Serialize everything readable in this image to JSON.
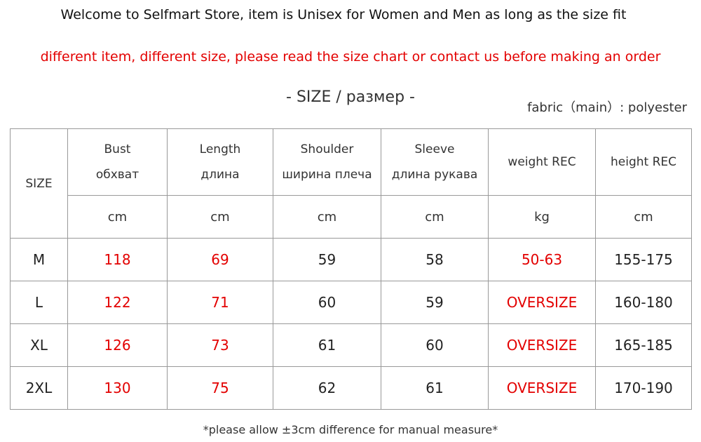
{
  "header": {
    "welcome": "Welcome to Selfmart Store, item is Unisex for Women and Men as long as the size fit",
    "notice": "different item, different size,  please read the size chart or contact us before making an order",
    "size_title": "- SIZE / размер -",
    "fabric": "fabric（main）: polyester"
  },
  "table": {
    "size_label": "SIZE",
    "columns": [
      [
        "Bust",
        "обхват"
      ],
      [
        "Length",
        "длина"
      ],
      [
        "Shoulder",
        "ширина плеча"
      ],
      [
        "Sleeve",
        "длина рукава"
      ],
      [
        "weight REC"
      ],
      [
        "height REC"
      ]
    ],
    "units": [
      "cm",
      "cm",
      "cm",
      "cm",
      "kg",
      "cm"
    ],
    "rows": [
      [
        "M",
        "118",
        "69",
        "59",
        "58",
        "50-63",
        "155-175"
      ],
      [
        "L",
        "122",
        "71",
        "60",
        "59",
        "OVERSIZE",
        "160-180"
      ],
      [
        "XL",
        "126",
        "73",
        "61",
        "60",
        "OVERSIZE",
        "165-185"
      ],
      [
        "2XL",
        "130",
        "75",
        "62",
        "61",
        "OVERSIZE",
        "170-190"
      ]
    ]
  },
  "footnote": "*please allow ±3cm difference for manual measure*"
}
